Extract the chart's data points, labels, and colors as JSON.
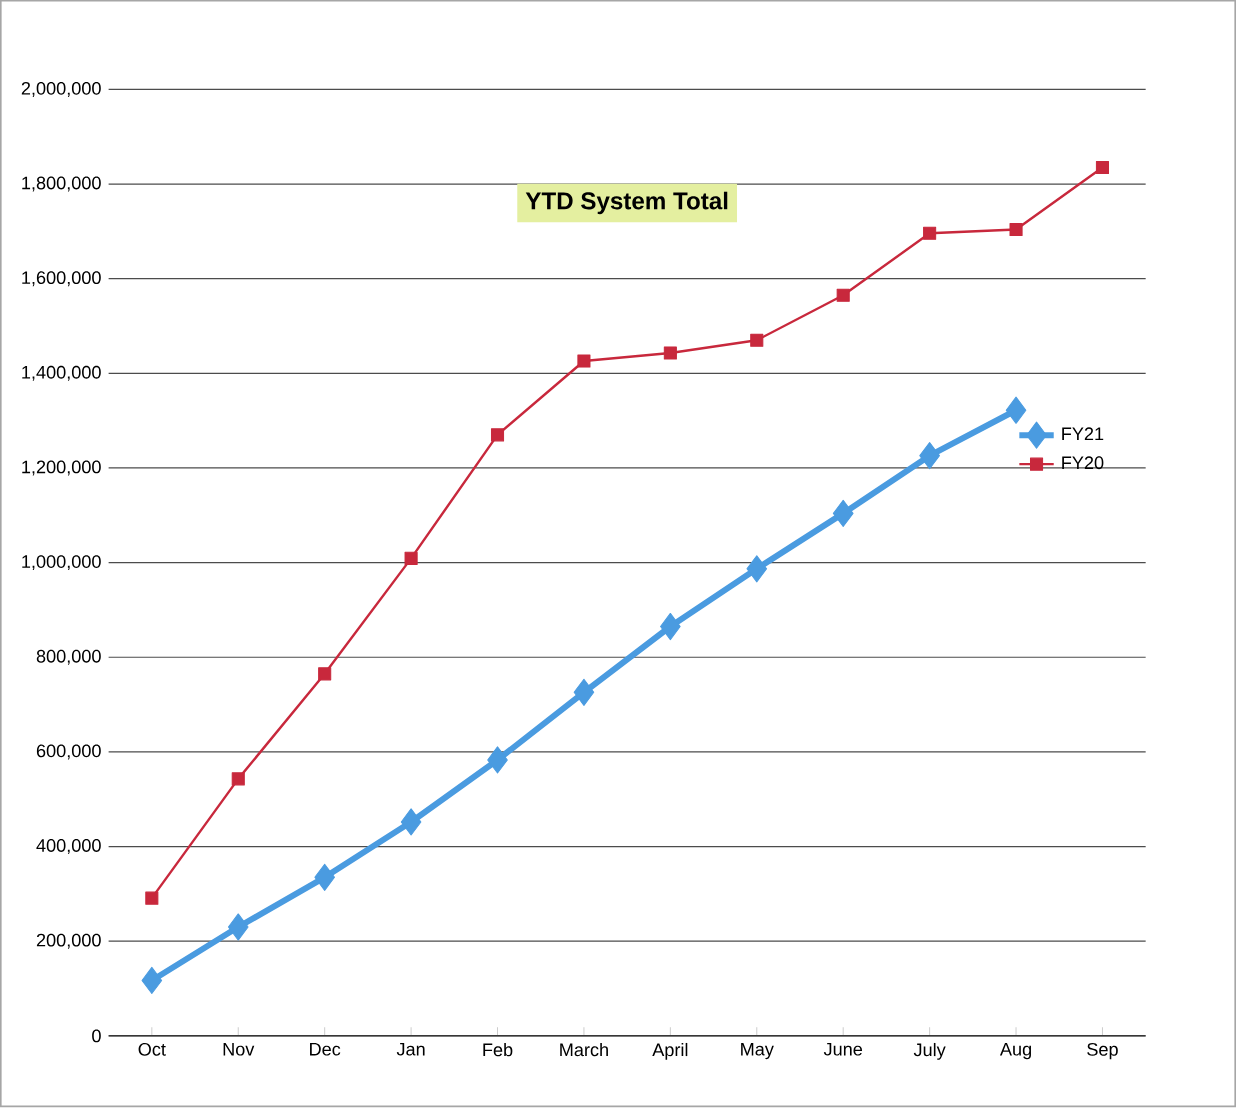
{
  "chart_data": {
    "type": "line",
    "title": "YTD System Total",
    "categories": [
      "Oct",
      "Nov",
      "Dec",
      "Jan",
      "Feb",
      "March",
      "April",
      "May",
      "June",
      "July",
      "Aug",
      "Sep"
    ],
    "series": [
      {
        "name": "FY21",
        "color": "#4a9be0",
        "marker": "diamond",
        "values": [
          117000,
          230000,
          335000,
          452000,
          583000,
          726000,
          865000,
          987000,
          1104000,
          1226000,
          1322000,
          null
        ]
      },
      {
        "name": "FY20",
        "color": "#c8283c",
        "marker": "square",
        "values": [
          291000,
          543000,
          765000,
          1009000,
          1270000,
          1426000,
          1443000,
          1470000,
          1565000,
          1696000,
          1704000,
          1835000
        ]
      }
    ],
    "ylim": [
      0,
      2000000
    ],
    "yticks": [
      0,
      {
        "value": 200000,
        "label": "200,000"
      },
      {
        "value": 400000,
        "label": "400,000"
      },
      {
        "value": 600000,
        "label": "600,000"
      },
      {
        "value": 800000,
        "label": "800,000"
      },
      {
        "value": 1000000,
        "label": "1,000,000"
      },
      {
        "value": 1200000,
        "label": "1,200,000"
      },
      {
        "value": 1400000,
        "label": "1,400,000"
      },
      {
        "value": 1600000,
        "label": "1,600,000"
      },
      {
        "value": 1800000,
        "label": "1,800,000"
      },
      {
        "value": 2000000,
        "label": "2,000,000"
      }
    ],
    "grid": "y",
    "legend": "right"
  }
}
